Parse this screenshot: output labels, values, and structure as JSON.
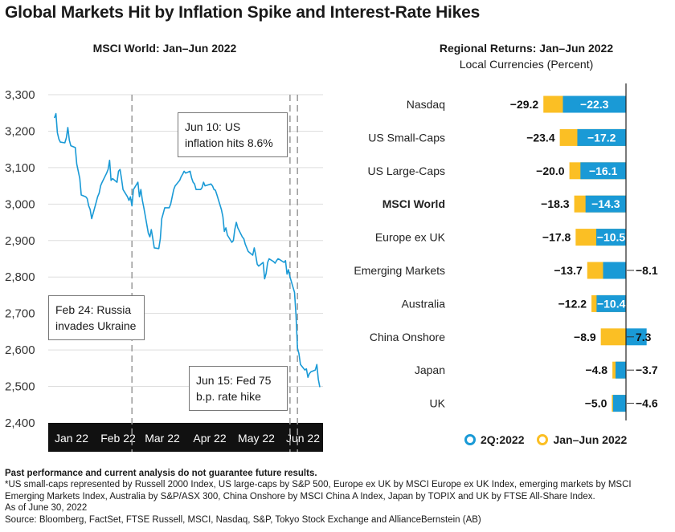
{
  "title": "Global Markets Hit by Inflation Spike and Interest-Rate Hikes",
  "line_chart_title": "MSCI World: Jan–Jun 2022",
  "bar_chart_title": "Regional Returns: Jan–Jun 2022",
  "bar_chart_subtitle": "Local Currencies (Percent)",
  "annotations": {
    "feb24": "Feb 24: Russia invades Ukraine",
    "jun10": "Jun 10: US inflation hits 8.6%",
    "jun15": "Jun 15: Fed 75 b.p. rate hike"
  },
  "legend": {
    "q2": "2Q:2022",
    "ytd": "Jan–Jun 2022"
  },
  "notes": {
    "disclaimer": "Past performance and current analysis do not guarantee future results.",
    "footnote": "*US small-caps represented by Russell 2000 Index, US large-caps by S&P 500, Europe ex UK by MSCI Europe ex UK Index, emerging markets by MSCI Emerging Markets Index, Australia by S&P/ASX 300, China Onshore by MSCI China A Index, Japan by TOPIX and UK by FTSE All-Share Index.",
    "asof": "As of June 30, 2022",
    "source": "Source: Bloomberg, FactSet, FTSE Russell, MSCI, Nasdaq, S&P, Tokyo Stock Exchange and AllianceBernstein (AB)"
  },
  "colors": {
    "line": "#1a9ad6",
    "q2": "#1a9ad6",
    "ytd": "#fbbf24",
    "axis_band": "#111111",
    "grid": "#dddddd"
  },
  "chart_data": [
    {
      "type": "line",
      "title": "MSCI World: Jan–Jun 2022",
      "ylim": [
        2400,
        3300
      ],
      "yticks": [
        2400,
        2500,
        2600,
        2700,
        2800,
        2900,
        3000,
        3100,
        3200,
        3300
      ],
      "xtick_labels": [
        "Jan 22",
        "Feb 22",
        "Mar 22",
        "Apr 22",
        "May 22",
        "Jun 22"
      ],
      "grid": "horizontal",
      "event_markers": [
        "Feb 24",
        "Jun 10",
        "Jun 15"
      ],
      "x_range": [
        "2022-01-01",
        "2022-06-30"
      ],
      "series": [
        {
          "x": [
            "2022-01-03",
            "2022-01-04",
            "2022-01-05",
            "2022-01-06",
            "2022-01-07",
            "2022-01-10",
            "2022-01-11",
            "2022-01-12",
            "2022-01-13",
            "2022-01-14",
            "2022-01-17",
            "2022-01-18",
            "2022-01-19",
            "2022-01-20",
            "2022-01-21",
            "2022-01-24",
            "2022-01-25",
            "2022-01-26",
            "2022-01-27",
            "2022-01-28",
            "2022-01-31",
            "2022-02-01",
            "2022-02-02",
            "2022-02-03",
            "2022-02-04",
            "2022-02-07",
            "2022-02-08",
            "2022-02-09",
            "2022-02-10",
            "2022-02-11",
            "2022-02-14",
            "2022-02-15",
            "2022-02-16",
            "2022-02-17",
            "2022-02-18",
            "2022-02-21",
            "2022-02-22",
            "2022-02-23",
            "2022-02-24",
            "2022-02-25",
            "2022-02-28",
            "2022-03-01",
            "2022-03-02",
            "2022-03-03",
            "2022-03-04",
            "2022-03-07",
            "2022-03-08",
            "2022-03-09",
            "2022-03-10",
            "2022-03-11",
            "2022-03-14",
            "2022-03-15",
            "2022-03-16",
            "2022-03-17",
            "2022-03-18",
            "2022-03-21",
            "2022-03-22",
            "2022-03-23",
            "2022-03-24",
            "2022-03-25",
            "2022-03-28",
            "2022-03-29",
            "2022-03-30",
            "2022-03-31",
            "2022-04-01",
            "2022-04-04",
            "2022-04-05",
            "2022-04-06",
            "2022-04-07",
            "2022-04-08",
            "2022-04-11",
            "2022-04-12",
            "2022-04-13",
            "2022-04-14",
            "2022-04-18",
            "2022-04-19",
            "2022-04-20",
            "2022-04-21",
            "2022-04-22",
            "2022-04-25",
            "2022-04-26",
            "2022-04-27",
            "2022-04-28",
            "2022-04-29",
            "2022-05-02",
            "2022-05-03",
            "2022-05-04",
            "2022-05-05",
            "2022-05-06",
            "2022-05-09",
            "2022-05-10",
            "2022-05-11",
            "2022-05-12",
            "2022-05-13",
            "2022-05-16",
            "2022-05-17",
            "2022-05-18",
            "2022-05-19",
            "2022-05-20",
            "2022-05-23",
            "2022-05-24",
            "2022-05-25",
            "2022-05-26",
            "2022-05-27",
            "2022-05-30",
            "2022-05-31",
            "2022-06-01",
            "2022-06-02",
            "2022-06-03",
            "2022-06-06",
            "2022-06-07",
            "2022-06-08",
            "2022-06-09",
            "2022-06-10",
            "2022-06-13",
            "2022-06-14",
            "2022-06-15",
            "2022-06-16",
            "2022-06-17",
            "2022-06-20",
            "2022-06-21",
            "2022-06-22",
            "2022-06-23",
            "2022-06-24",
            "2022-06-27",
            "2022-06-28",
            "2022-06-29",
            "2022-06-30"
          ],
          "y": [
            3236,
            3248,
            3196,
            3178,
            3170,
            3168,
            3182,
            3210,
            3175,
            3160,
            3155,
            3110,
            3090,
            3070,
            3025,
            3020,
            3015,
            2995,
            2985,
            2960,
            3005,
            3020,
            3030,
            3050,
            3060,
            3085,
            3095,
            3120,
            3065,
            3070,
            3060,
            3090,
            3095,
            3070,
            3040,
            3020,
            3010,
            3020,
            2995,
            3040,
            3060,
            3020,
            3040,
            3010,
            2990,
            2920,
            2910,
            2930,
            2905,
            2880,
            2878,
            2905,
            2960,
            2975,
            2990,
            2990,
            3000,
            3020,
            3040,
            3050,
            3065,
            3075,
            3082,
            3090,
            3085,
            3090,
            3072,
            3060,
            3055,
            3040,
            3040,
            3045,
            3060,
            3050,
            3055,
            3050,
            3040,
            3038,
            3025,
            2985,
            2965,
            2925,
            2935,
            2915,
            2895,
            2900,
            2930,
            2950,
            2935,
            2910,
            2905,
            2890,
            2880,
            2870,
            2860,
            2880,
            2860,
            2835,
            2830,
            2840,
            2795,
            2810,
            2840,
            2850,
            2842,
            2838,
            2845,
            2850,
            2848,
            2840,
            2845,
            2808,
            2820,
            2800,
            2758,
            2698,
            2605,
            2590,
            2560,
            2545,
            2548,
            2525,
            2535,
            2540,
            2545,
            2560,
            2520,
            2498
          ]
        }
      ]
    },
    {
      "type": "bar",
      "title": "Regional Returns: Jan–Jun 2022",
      "subtitle": "Local Currencies (Percent)",
      "orientation": "horizontal",
      "categories": [
        "Nasdaq",
        "US Small-Caps",
        "US Large-Caps",
        "MSCI World",
        "Europe ex UK",
        "Emerging Markets",
        "Australia",
        "China Onshore",
        "Japan",
        "UK"
      ],
      "highlight_category": "MSCI World",
      "series": [
        {
          "name": "Jan–Jun 2022",
          "values": [
            -29.2,
            -23.4,
            -20.0,
            -18.3,
            -17.8,
            -13.7,
            -12.2,
            -8.9,
            -4.8,
            -5.0
          ]
        },
        {
          "name": "2Q:2022",
          "values": [
            -22.3,
            -17.2,
            -16.1,
            -14.3,
            -10.5,
            -8.1,
            -10.4,
            7.3,
            -3.7,
            -4.6
          ]
        }
      ],
      "value_labels": {
        "ytd": [
          "−29.2",
          "−23.4",
          "−20.0",
          "−18.3",
          "−17.8",
          "−13.7",
          "−12.2",
          "−8.9",
          "−4.8",
          "−5.0"
        ],
        "q2": [
          "−22.3",
          "−17.2",
          "−16.1",
          "−14.3",
          "−10.5",
          "−8.1",
          "−10.4",
          "7.3",
          "−3.7",
          "−4.6"
        ]
      },
      "legend_position": "bottom"
    }
  ]
}
